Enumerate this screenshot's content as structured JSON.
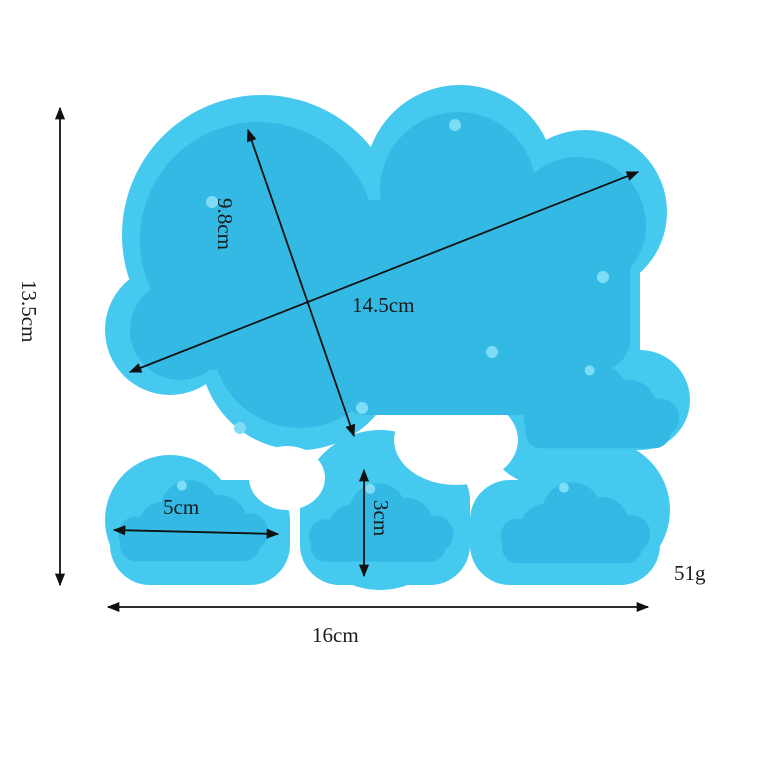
{
  "product": {
    "colors": {
      "mold": "#45c9ef",
      "cavity": "#33b9e4",
      "edge": "#2aa6d2",
      "background": "#ffffff"
    },
    "weight": "51g"
  },
  "dimensions": {
    "overall_height": "13.5cm",
    "overall_width": "16cm",
    "large_cloud_height": "9.8cm",
    "large_cloud_width": "14.5cm",
    "small_cloud_width": "5cm",
    "small_cloud_height": "3cm"
  }
}
